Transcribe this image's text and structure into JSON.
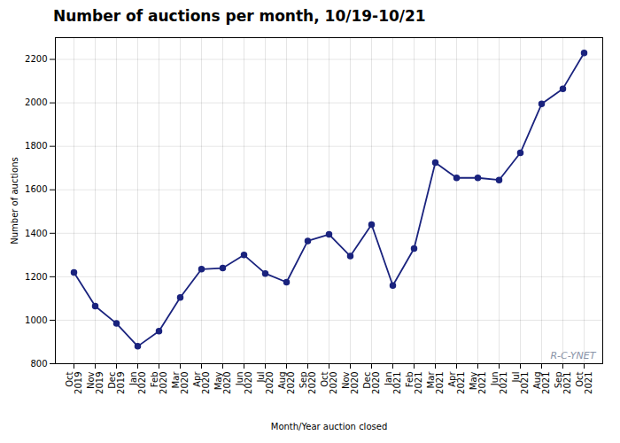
{
  "chart_data": {
    "type": "line",
    "title": "Number of auctions per month, 10/19-10/21",
    "xlabel": "Month/Year auction closed",
    "ylabel": "Number of auctions",
    "categories": [
      "Oct\n2019",
      "Nov\n2019",
      "Dec\n2019",
      "Jan\n2020",
      "Feb\n2020",
      "Mar\n2020",
      "Apr\n2020",
      "May\n2020",
      "Jun\n2020",
      "Jul\n2020",
      "Aug\n2020",
      "Sep\n2020",
      "Oct\n2020",
      "Nov\n2020",
      "Dec\n2020",
      "Jan\n2021",
      "Feb\n2021",
      "Mar\n2021",
      "Apr\n2021",
      "May\n2021",
      "Jun\n2021",
      "Jul\n2021",
      "Aug\n2021",
      "Sep\n2021",
      "Oct\n2021"
    ],
    "values": [
      1220,
      1065,
      985,
      880,
      950,
      1105,
      1235,
      1240,
      1300,
      1215,
      1175,
      1365,
      1395,
      1295,
      1440,
      1160,
      1330,
      1725,
      1655,
      1655,
      1645,
      1770,
      1995,
      2065,
      2230
    ],
    "color": "#1a237e",
    "marker": "circle",
    "ylim": [
      800,
      2300
    ],
    "yticks": [
      800,
      1000,
      1200,
      1400,
      1600,
      1800,
      2000,
      2200
    ],
    "grid": true,
    "annotations": [
      "R-C-YNET"
    ]
  }
}
